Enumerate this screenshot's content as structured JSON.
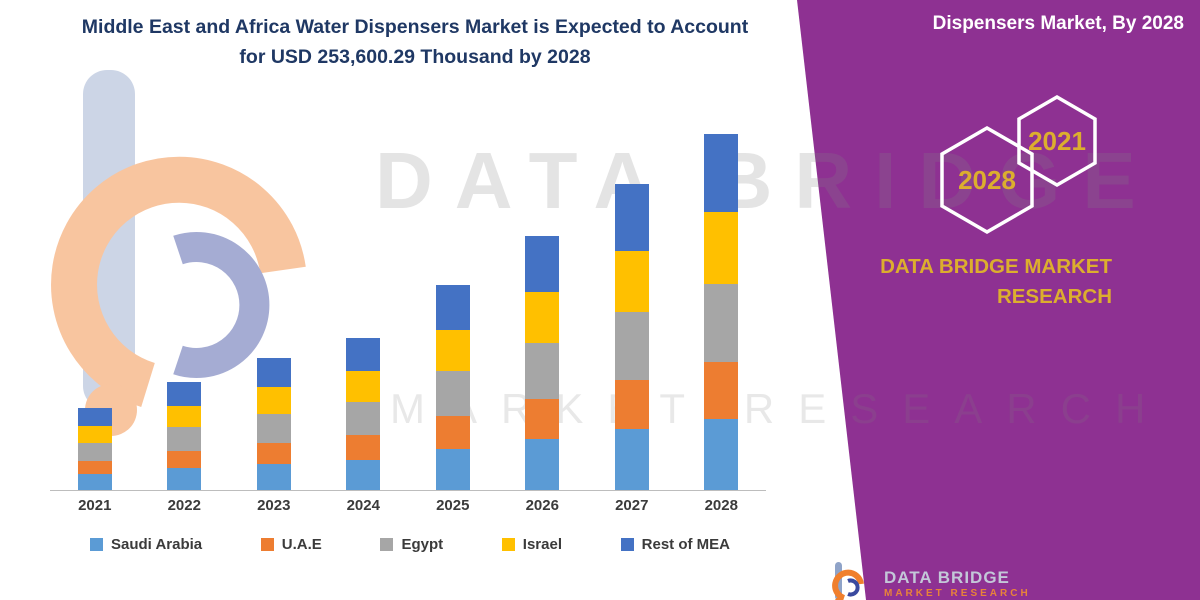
{
  "headline": {
    "line1": "Middle East and Africa Water Dispensers Market is Expected to Account",
    "line2": "for USD 253,600.29 Thousand by 2028"
  },
  "side_panel": {
    "heading": "Dispensers Market, By 2028",
    "hexagons": [
      {
        "year": "2028"
      },
      {
        "year": "2021"
      }
    ],
    "brand_line1": "DATA BRIDGE MARKET",
    "brand_line2": "RESEARCH",
    "panel_color": "#8e3192",
    "gold_color": "#dcae2e"
  },
  "watermark": {
    "line1": "DATA BRIDGE",
    "line2": "MARKET RESEARCH"
  },
  "footer_logo": {
    "name": "DATA BRIDGE",
    "sub": "MARKET RESEARCH"
  },
  "chart_data": {
    "type": "bar",
    "stacked": true,
    "title": "Middle East and Africa Water Dispensers Market, USD Thousand",
    "unit": "USD Thousand",
    "categories": [
      "2021",
      "2022",
      "2023",
      "2024",
      "2025",
      "2026",
      "2027",
      "2028"
    ],
    "series": [
      {
        "name": "Saudi Arabia",
        "color": "#5b9bd5",
        "values": [
          11700,
          15400,
          18800,
          21700,
          29200,
          36200,
          43600,
          50700
        ]
      },
      {
        "name": "U.A.E",
        "color": "#ed7d31",
        "values": [
          9300,
          12300,
          15000,
          17300,
          23400,
          28900,
          34900,
          40600
        ]
      },
      {
        "name": "Egypt",
        "color": "#a6a6a6",
        "values": [
          12800,
          16900,
          20700,
          23800,
          32100,
          39800,
          48000,
          55800
        ]
      },
      {
        "name": "Israel",
        "color": "#ffc000",
        "values": [
          11700,
          15400,
          18800,
          21700,
          29200,
          36200,
          43600,
          50700
        ]
      },
      {
        "name": "Rest of MEA",
        "color": "#4472c4",
        "values": [
          12900,
          16900,
          20700,
          23800,
          32100,
          39800,
          47900,
          55800
        ]
      }
    ],
    "totals": [
      58400,
      76900,
      94000,
      108300,
      146000,
      180900,
      218000,
      253600
    ],
    "values_estimated_from_pixels": true,
    "ylim": [
      0,
      260000
    ],
    "grid": false,
    "legend_position": "bottom",
    "xlabel": "",
    "ylabel": ""
  }
}
